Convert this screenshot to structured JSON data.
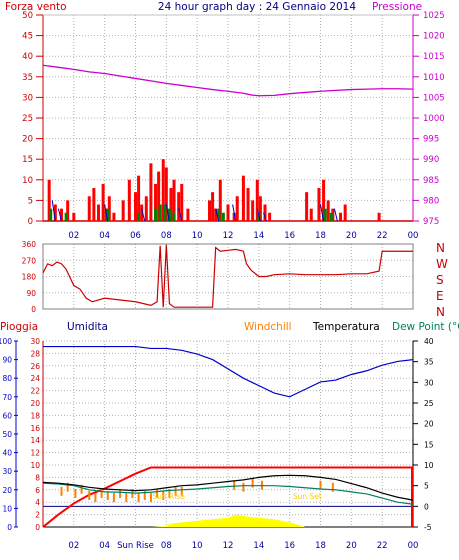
{
  "header": {
    "left_label": "Forza vento",
    "title": "24 hour graph day : 24 Gennaio 2014",
    "right_label": "Pressione"
  },
  "colors": {
    "wind": "#ff0000",
    "gust_green": "#008000",
    "gust_blue": "#0000c8",
    "pressure": "#cc00cc",
    "direction": "#cc0000",
    "humidity": "#0000cc",
    "rain": "#ff0000",
    "temperature": "#000000",
    "dewpoint": "#008060",
    "windchill": "#ff8000",
    "solar": "#ffff00",
    "baseline": "#000080",
    "tick_label": "#0000a0",
    "left_axis": "#cc0000"
  },
  "labels": {
    "direction_axis": [
      "N",
      "W",
      "S",
      "E",
      "N"
    ],
    "pioggia": "Pioggia",
    "umidita": "Umidita",
    "windchill": "Windchill",
    "temperatura": "Temperatura",
    "dewpoint": "Dew Point (°C",
    "sunrise": "Sun Rise",
    "sunset": "Sun Set",
    "sunrise_tick": "Sun Rise"
  },
  "chart_data": [
    {
      "type": "line",
      "name": "wind-pressure",
      "x": [
        0,
        1,
        2,
        3,
        4,
        5,
        6,
        7,
        8,
        9,
        10,
        11,
        12,
        13,
        13.5,
        14,
        15,
        16,
        17,
        18,
        19,
        20,
        21,
        22,
        23,
        24
      ],
      "series": [
        {
          "name": "Pressione",
          "axis": "right",
          "values": [
            1012.8,
            1012.3,
            1011.8,
            1011.2,
            1010.8,
            1010.2,
            1009.6,
            1009,
            1008.4,
            1007.9,
            1007.4,
            1006.9,
            1006.5,
            1006.0,
            1005.6,
            1005.4,
            1005.5,
            1005.9,
            1006.2,
            1006.5,
            1006.7,
            1006.9,
            1007.0,
            1007.1,
            1007.1,
            1007.0
          ]
        }
      ],
      "wind_bars": {
        "x": [
          0.4,
          0.8,
          1.2,
          1.6,
          2.0,
          3.0,
          3.3,
          3.6,
          3.9,
          4.1,
          4.3,
          4.6,
          5.2,
          5.6,
          6.0,
          6.2,
          6.4,
          6.7,
          7.0,
          7.3,
          7.5,
          7.8,
          8.0,
          8.3,
          8.5,
          8.8,
          9.0,
          9.4,
          10.8,
          11.0,
          11.2,
          11.5,
          12.0,
          12.4,
          12.6,
          13.0,
          13.3,
          13.6,
          13.9,
          14.1,
          14.4,
          14.7,
          17.1,
          17.4,
          17.9,
          18.2,
          18.5,
          18.8,
          19.3,
          19.6,
          21.8
        ],
        "values": [
          10,
          4,
          3,
          5,
          2,
          6,
          8,
          4,
          9,
          3,
          6,
          2,
          5,
          10,
          7,
          11,
          4,
          6,
          14,
          9,
          12,
          15,
          13,
          8,
          10,
          7,
          9,
          3,
          5,
          7,
          3,
          10,
          4,
          2,
          6,
          11,
          8,
          5,
          10,
          6,
          4,
          2,
          7,
          3,
          8,
          10,
          5,
          3,
          2,
          4,
          2
        ]
      },
      "gust_green": {
        "x": [
          0.5,
          1.5,
          4.2,
          6.2,
          7.3,
          7.6,
          7.9,
          8.2,
          8.5,
          11.4,
          11.7,
          14.0,
          18.3,
          18.7
        ],
        "values": [
          3,
          2,
          3,
          2,
          3,
          4,
          4,
          3,
          2,
          3,
          2,
          2,
          3,
          2
        ]
      },
      "gust_blue": {
        "x": [
          0.6,
          1.0,
          4.0,
          6.4,
          8.0,
          8.8,
          11.2,
          12.3,
          13.9,
          14.3,
          18.0,
          18.9
        ],
        "values": [
          5,
          3,
          4,
          3,
          4,
          3,
          3,
          4,
          3,
          2,
          4,
          3
        ]
      },
      "left_axis": {
        "label": "Forza vento",
        "ylim": [
          0,
          50
        ],
        "ticks": [
          0,
          5,
          10,
          15,
          20,
          25,
          30,
          35,
          40,
          45,
          50
        ]
      },
      "right_axis": {
        "label": "Pressione",
        "ylim": [
          975,
          1025
        ],
        "ticks": [
          975,
          980,
          985,
          990,
          995,
          1000,
          1005,
          1010,
          1015,
          1020,
          1025
        ]
      },
      "xlim": [
        0,
        24
      ],
      "xticks": [
        "02",
        "04",
        "06",
        "08",
        "10",
        "12",
        "14",
        "16",
        "18",
        "20",
        "22",
        "00"
      ],
      "grid": true
    },
    {
      "type": "line",
      "name": "wind-direction",
      "x": [
        0,
        0.3,
        0.6,
        0.9,
        1.2,
        1.5,
        2.0,
        2.4,
        2.8,
        3.2,
        4.0,
        5.0,
        6.0,
        7.0,
        7.4,
        7.6,
        7.8,
        8.0,
        8.2,
        8.5,
        10.0,
        11.0,
        11.2,
        11.5,
        12.0,
        12.5,
        13.0,
        13.2,
        13.5,
        14.0,
        14.5,
        15.0,
        16.0,
        17.0,
        18.0,
        19.0,
        20.0,
        21.0,
        21.8,
        22.0,
        23.0,
        24.0
      ],
      "series": [
        {
          "name": "Direction",
          "values": [
            200,
            250,
            240,
            260,
            250,
            220,
            130,
            110,
            60,
            40,
            60,
            50,
            40,
            20,
            40,
            350,
            10,
            355,
            30,
            10,
            10,
            10,
            340,
            320,
            325,
            330,
            320,
            250,
            215,
            180,
            180,
            190,
            195,
            190,
            190,
            190,
            195,
            195,
            210,
            320,
            320,
            320
          ]
        }
      ],
      "ylim": [
        0,
        360
      ],
      "ticks": [
        0,
        90,
        180,
        270,
        360
      ],
      "axis_letters": [
        "N",
        "W",
        "S",
        "E",
        "N"
      ],
      "grid": true
    },
    {
      "type": "line",
      "name": "humidity-temperature-rain",
      "x": [
        0,
        1,
        2,
        3,
        4,
        5,
        6,
        7,
        8,
        9,
        10,
        11,
        12,
        13,
        14,
        15,
        16,
        17,
        18,
        19,
        20,
        21,
        22,
        23,
        24
      ],
      "series": [
        {
          "name": "Umidita",
          "axis": "humidity",
          "values": [
            97,
            97,
            97,
            97,
            97,
            97,
            97,
            96,
            96,
            95,
            93,
            90,
            85,
            80,
            76,
            72,
            70,
            74,
            78,
            79,
            82,
            84,
            87,
            89,
            90
          ]
        },
        {
          "name": "Temperatura",
          "axis": "right",
          "values": [
            5.8,
            5.6,
            5.2,
            4.6,
            4.2,
            4.0,
            3.8,
            4.0,
            4.5,
            5.0,
            5.2,
            5.6,
            6.0,
            6.4,
            7.0,
            7.4,
            7.5,
            7.4,
            7.0,
            6.5,
            5.5,
            4.5,
            3.2,
            2.2,
            1.5
          ]
        },
        {
          "name": "Dew Point",
          "axis": "right",
          "values": [
            5.6,
            5.4,
            5.0,
            4.0,
            3.5,
            3.4,
            3.2,
            3.4,
            3.8,
            4.0,
            4.2,
            4.5,
            4.8,
            5.0,
            5.0,
            5.0,
            4.8,
            4.5,
            4.2,
            4.0,
            3.5,
            3.0,
            2.0,
            1.0,
            0.5
          ]
        },
        {
          "name": "Pioggia",
          "axis": "rain",
          "values": [
            0,
            2,
            3.8,
            5.2,
            6.2,
            7.4,
            8.6,
            9.6,
            9.6,
            9.6,
            9.6,
            9.6,
            9.6,
            9.6,
            9.6,
            9.6,
            9.6,
            9.6,
            9.6,
            9.6,
            9.6,
            9.6,
            9.6,
            9.6,
            9.6
          ]
        }
      ],
      "windchill_bars": {
        "x": [
          1.2,
          1.6,
          2.1,
          2.5,
          3.0,
          3.4,
          3.8,
          4.2,
          4.6,
          5.0,
          5.4,
          5.8,
          6.2,
          6.6,
          7.0,
          7.4,
          7.8,
          8.2,
          8.6,
          9.0,
          12.4,
          13.0,
          13.6,
          14.2,
          18.0,
          18.8
        ],
        "values": [
          3.5,
          4.5,
          3.0,
          4.0,
          2.5,
          2.0,
          3.0,
          2.5,
          2.0,
          3.0,
          2.0,
          3.0,
          2.0,
          2.5,
          2.0,
          3.0,
          2.5,
          3.0,
          3.5,
          3.5,
          5.0,
          4.5,
          5.5,
          5.0,
          5.0,
          4.5
        ]
      },
      "solar": {
        "x": [
          0,
          7,
          8,
          8.2,
          9,
          10,
          11,
          12,
          12.5,
          13,
          14,
          15,
          16,
          17,
          24
        ],
        "values": [
          0,
          0,
          0.5,
          2,
          3,
          4,
          5,
          6,
          8,
          7,
          6,
          5,
          3,
          0,
          0
        ]
      },
      "humidity_axis": {
        "label": "Umidita",
        "ylim": [
          0,
          100
        ],
        "ticks": [
          0,
          10,
          20,
          30,
          40,
          50,
          60,
          70,
          80,
          90,
          100
        ]
      },
      "rain_axis": {
        "label": "Pioggia",
        "ylim": [
          0,
          30
        ],
        "ticks": [
          0,
          2,
          4,
          6,
          8,
          10,
          12,
          14,
          16,
          18,
          20,
          22,
          24,
          26,
          28,
          30
        ]
      },
      "right_axis": {
        "label": "Temperatura",
        "ylim": [
          -5,
          40
        ],
        "ticks": [
          -5,
          0,
          5,
          10,
          15,
          20,
          25,
          30,
          35,
          40
        ]
      },
      "rain_cap": 9.6,
      "baseline_y": 0,
      "sunrise_x": 7.5,
      "sunset_x": 16.5,
      "xticks": [
        "02",
        "04",
        "Sun Rise",
        "08",
        "10",
        "12",
        "14",
        "16",
        "18",
        "20",
        "22",
        "00"
      ],
      "grid": true
    }
  ]
}
